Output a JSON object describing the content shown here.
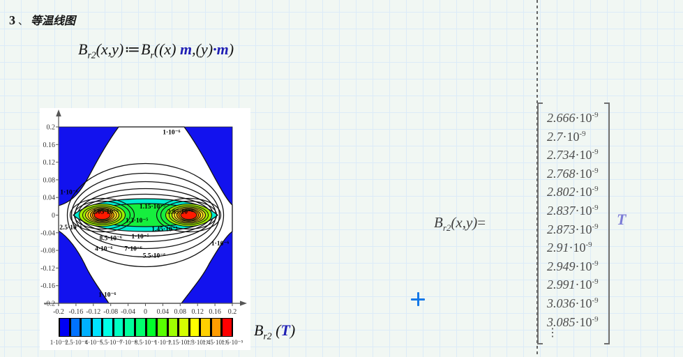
{
  "accent_colors": {
    "math_keyword_blue": "#1f1fb4",
    "unit_purple": "#7b7bd6",
    "cursor_blue": "#1478e8"
  },
  "title": {
    "num": "3",
    "sep": "、",
    "text": "等温线图"
  },
  "definition": {
    "b1": "B",
    "s1": "r2",
    "a1": "(x,y)",
    "assign": "≔",
    "b2": "B",
    "s2": "r",
    "p1": "((x) ",
    "m1": "m",
    "p2": ",(y)",
    "dot": "·",
    "m2": "m",
    "p3": ")"
  },
  "chart_data": {
    "type": "heatmap",
    "subtype": "filled-contour",
    "title": "",
    "xlabel": "",
    "ylabel": "",
    "x_range": [
      -0.2,
      0.2
    ],
    "y_range": [
      -0.2,
      0.2
    ],
    "x_ticks": [
      "-0.2",
      "-0.16",
      "-0.12",
      "-0.08",
      "-0.04",
      "0",
      "0.04",
      "0.08",
      "0.12",
      "0.16",
      "0.2"
    ],
    "y_ticks": [
      "0.2",
      "0.16",
      "0.12",
      "0.08",
      "0.04",
      "0",
      "-0.04",
      "-0.08",
      "-0.12",
      "-0.16",
      "-0.2"
    ],
    "maxima_at": [
      [
        -0.1,
        0
      ],
      [
        0.1,
        0
      ]
    ],
    "contour_levels_T": [
      "1·10⁻⁶",
      "2.5·10⁻⁶",
      "4·10⁻⁶",
      "5.5·10⁻⁶",
      "7·10⁻⁶",
      "8.5·10⁻⁶",
      "1·10⁻⁵",
      "1.15·10⁻⁵",
      "1.3·10⁻⁵",
      "1.45·10⁻⁵",
      "1.6·10⁻⁵"
    ],
    "contour_labels": [
      {
        "t": "1·10⁻⁶",
        "x": 65,
        "y": 3
      },
      {
        "t": "1·10⁻⁶",
        "x": 6,
        "y": 37
      },
      {
        "t": "1·10⁻⁶",
        "x": 93,
        "y": 66
      },
      {
        "t": "1·10⁻⁶",
        "x": 28,
        "y": 95
      },
      {
        "t": "2.5·10⁻⁶",
        "x": 7,
        "y": 57
      },
      {
        "t": "8.5·10⁻⁶",
        "x": 30,
        "y": 63
      },
      {
        "t": "4·10⁻⁶",
        "x": 26,
        "y": 69
      },
      {
        "t": "7·10⁻⁶",
        "x": 43,
        "y": 69
      },
      {
        "t": "5.5·10⁻⁶",
        "x": 55,
        "y": 73
      },
      {
        "t": "1·10⁻⁵",
        "x": 47,
        "y": 62
      },
      {
        "t": "1.15·10⁻⁵",
        "x": 54,
        "y": 45
      },
      {
        "t": "1.3·10⁻⁵",
        "x": 45,
        "y": 53
      },
      {
        "t": "1.45·10⁻⁵",
        "x": 61,
        "y": 58
      },
      {
        "t": "2.05·10⁻⁵",
        "x": 27,
        "y": 48
      },
      {
        "t": "2.05·10⁻⁵",
        "x": 70,
        "y": 48
      }
    ],
    "colorbar": {
      "colors": [
        "#0000f5",
        "#0072ff",
        "#00b0ff",
        "#00e2ff",
        "#00ffe6",
        "#00ffc2",
        "#00ff9c",
        "#00ff6d",
        "#00ff2b",
        "#58ff00",
        "#9fff00",
        "#d5ff00",
        "#ffff00",
        "#ffd000",
        "#ff9c00",
        "#ff0000"
      ],
      "tick_labels": [
        "1·10⁻⁶",
        "2.5·10⁻⁶",
        "4·10⁻⁶",
        "5.5·10⁻⁶",
        "7·10⁻⁶",
        "8.5·10⁻⁶",
        "1·10⁻⁵",
        "1.15·10⁻⁵",
        "1.3·10⁻⁵",
        "1.45·10⁻⁵",
        "1.6·10⁻⁵"
      ]
    },
    "legend": {
      "b": "B",
      "s": "r2",
      "open": " (",
      "unit": "T",
      "close": ")"
    }
  },
  "result": {
    "b": "B",
    "s": "r2",
    "a": "(x,y)",
    "eq": "=",
    "values": [
      {
        "m": "2.666",
        "e": "-9"
      },
      {
        "m": "2.7",
        "e": "-9"
      },
      {
        "m": "2.734",
        "e": "-9"
      },
      {
        "m": "2.768",
        "e": "-9"
      },
      {
        "m": "2.802",
        "e": "-9"
      },
      {
        "m": "2.837",
        "e": "-9"
      },
      {
        "m": "2.873",
        "e": "-9"
      },
      {
        "m": "2.91",
        "e": "-9"
      },
      {
        "m": "2.949",
        "e": "-9"
      },
      {
        "m": "2.991",
        "e": "-9"
      },
      {
        "m": "3.036",
        "e": "-9"
      },
      {
        "m": "3.085",
        "e": "-9"
      }
    ],
    "ellipsis": "⋮",
    "unit": "T"
  },
  "cursor": {
    "glyph": "+"
  }
}
